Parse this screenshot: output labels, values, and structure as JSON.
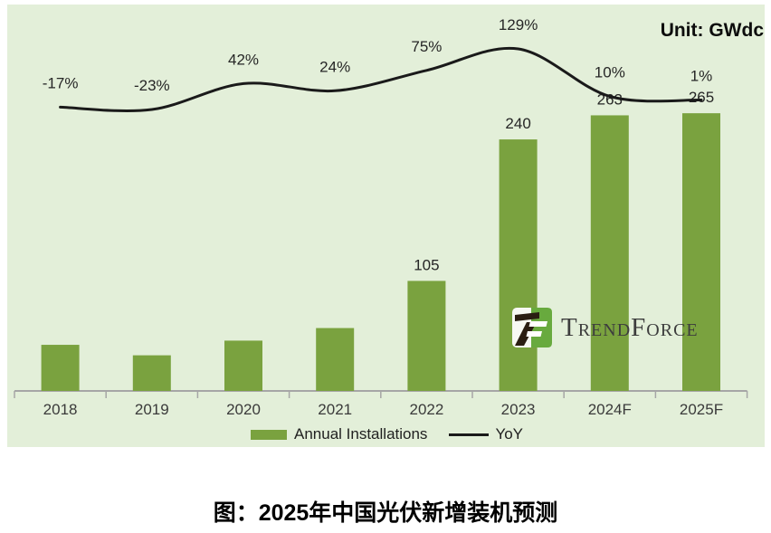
{
  "caption": "图：2025年中国光伏新增装机预测",
  "unit_label": "Unit: GWdc",
  "logo": {
    "wordmark": "TrendForce"
  },
  "legend": {
    "bars_label": "Annual Installations",
    "line_label": "YoY"
  },
  "chart_data": {
    "type": "bar+line",
    "title": "图：2025年中国光伏新增装机预测",
    "unit": "GWdc",
    "categories": [
      "2018",
      "2019",
      "2020",
      "2021",
      "2022",
      "2023",
      "2024F",
      "2025F"
    ],
    "series": [
      {
        "name": "Annual Installations",
        "type": "bar",
        "color": "#7aa23f",
        "values": [
          44,
          34,
          48,
          60,
          105,
          240,
          263,
          265
        ],
        "visible_labels": [
          "",
          "",
          "",
          "",
          "105",
          "240",
          "263",
          "265"
        ]
      },
      {
        "name": "YoY",
        "type": "line",
        "color": "#1a1a1a",
        "values": [
          -17,
          -23,
          42,
          24,
          75,
          129,
          10,
          1
        ],
        "visible_labels": [
          "-17%",
          "-23%",
          "42%",
          "24%",
          "75%",
          "129%",
          "10%",
          "1%"
        ]
      }
    ],
    "note": "2018-2021 bars are unlabeled in the image; their values are estimated from bar heights and the YoY chain.",
    "plot_background": "#e3efd9",
    "axis_color": "#a6a6a6",
    "grid": false,
    "legend_position": "bottom-center"
  }
}
